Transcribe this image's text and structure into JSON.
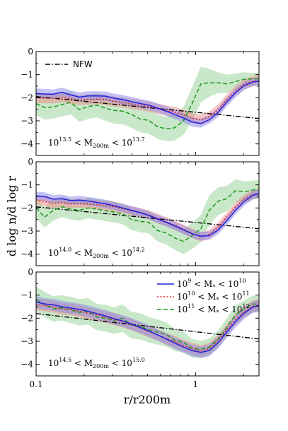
{
  "chart_data": {
    "type": "line",
    "x_scale": "log",
    "xlim": [
      0.1,
      2.5
    ],
    "ylim": [
      -4.5,
      0
    ],
    "xlabel": "r/r200m",
    "ylabel": "d log n/d log r",
    "x_ticks": [
      {
        "value": 0.1,
        "label": "0.1"
      },
      {
        "value": 1,
        "label": "1"
      }
    ],
    "y_ticks": [
      0,
      -1,
      -2,
      -3,
      -4
    ],
    "y_tick_labels": [
      "0",
      "−1",
      "−2",
      "−3",
      "−4"
    ],
    "legend_location": "upper-right in bottom panel",
    "colors": {
      "low": "#2222dd",
      "low_fill": "#8888ee",
      "mid": "#dd2222",
      "mid_fill": "#ee8888",
      "high": "#229922",
      "high_fill": "#88cc88",
      "nfw": "#000000"
    },
    "legend": [
      {
        "series": "low",
        "label_parts": [
          "10",
          "9",
          " < M",
          "*",
          " < 10",
          "10"
        ]
      },
      {
        "series": "mid",
        "label_parts": [
          "10",
          "10",
          " < M",
          "*",
          " < 10",
          "11"
        ]
      },
      {
        "series": "high",
        "label_parts": [
          "10",
          "11",
          " < M",
          "*",
          " < 10",
          "12"
        ]
      }
    ],
    "nfw_label": "NFW",
    "x": [
      0.1,
      0.113,
      0.128,
      0.145,
      0.165,
      0.187,
      0.212,
      0.24,
      0.272,
      0.308,
      0.349,
      0.396,
      0.449,
      0.509,
      0.577,
      0.654,
      0.741,
      0.84,
      0.952,
      1.08,
      1.22,
      1.39,
      1.57,
      1.78,
      2.02,
      2.29,
      2.5
    ],
    "panels": [
      {
        "annotation_parts": [
          "10",
          "13.5",
          " < M",
          "200m",
          " < 10",
          "13.7"
        ],
        "nfw": {
          "x": [
            0.1,
            2.5
          ],
          "y": [
            -1.95,
            -2.9
          ]
        },
        "series": [
          {
            "key": "low",
            "y": [
              -1.82,
              -1.84,
              -1.85,
              -1.76,
              -1.88,
              -1.97,
              -1.92,
              -1.92,
              -1.93,
              -2.02,
              -2.08,
              -2.17,
              -2.25,
              -2.32,
              -2.45,
              -2.58,
              -2.72,
              -2.88,
              -3.05,
              -3.12,
              -2.95,
              -2.62,
              -2.18,
              -1.78,
              -1.48,
              -1.32,
              -1.28
            ],
            "lower": [
              -2.02,
              -2.04,
              -2.06,
              -1.96,
              -2.08,
              -2.17,
              -2.12,
              -2.12,
              -2.13,
              -2.22,
              -2.28,
              -2.37,
              -2.45,
              -2.52,
              -2.64,
              -2.78,
              -2.92,
              -3.08,
              -3.25,
              -3.3,
              -3.12,
              -2.82,
              -2.38,
              -1.98,
              -1.66,
              -1.5,
              -1.45
            ],
            "upper": [
              -1.6,
              -1.62,
              -1.64,
              -1.56,
              -1.68,
              -1.76,
              -1.72,
              -1.72,
              -1.73,
              -1.82,
              -1.88,
              -1.97,
              -2.05,
              -2.12,
              -2.25,
              -2.38,
              -2.52,
              -2.68,
              -2.85,
              -2.92,
              -2.76,
              -2.42,
              -1.98,
              -1.6,
              -1.3,
              -1.15,
              -1.12
            ]
          },
          {
            "key": "mid",
            "y": [
              -2.0,
              -2.02,
              -2.03,
              -1.98,
              -2.05,
              -2.1,
              -2.08,
              -2.06,
              -2.08,
              -2.16,
              -2.2,
              -2.27,
              -2.33,
              -2.38,
              -2.47,
              -2.55,
              -2.62,
              -2.74,
              -2.88,
              -2.96,
              -2.82,
              -2.5,
              -2.08,
              -1.7,
              -1.42,
              -1.28,
              -1.25
            ],
            "lower": [
              -2.22,
              -2.24,
              -2.25,
              -2.2,
              -2.27,
              -2.32,
              -2.3,
              -2.28,
              -2.3,
              -2.38,
              -2.42,
              -2.49,
              -2.55,
              -2.6,
              -2.69,
              -2.77,
              -2.84,
              -2.96,
              -3.1,
              -3.18,
              -3.04,
              -2.72,
              -2.3,
              -1.92,
              -1.64,
              -1.5,
              -1.47
            ],
            "upper": [
              -1.78,
              -1.8,
              -1.81,
              -1.76,
              -1.83,
              -1.88,
              -1.86,
              -1.84,
              -1.86,
              -1.94,
              -1.98,
              -2.05,
              -2.11,
              -2.16,
              -2.25,
              -2.33,
              -2.4,
              -2.52,
              -2.66,
              -2.74,
              -2.6,
              -2.28,
              -1.86,
              -1.48,
              -1.2,
              -1.06,
              -1.03
            ]
          },
          {
            "key": "high",
            "y": [
              -2.25,
              -2.42,
              -2.4,
              -2.3,
              -2.2,
              -2.52,
              -2.38,
              -2.32,
              -2.45,
              -2.55,
              -2.58,
              -2.72,
              -2.92,
              -2.98,
              -3.25,
              -3.35,
              -3.3,
              -3.0,
              -2.25,
              -1.4,
              -1.35,
              -1.35,
              -1.4,
              -1.3,
              -1.2,
              -1.18,
              -1.18
            ],
            "lower": [
              -2.75,
              -2.95,
              -2.9,
              -2.8,
              -2.72,
              -3.05,
              -2.92,
              -2.85,
              -3.0,
              -3.12,
              -3.15,
              -3.3,
              -3.5,
              -3.55,
              -3.78,
              -3.88,
              -3.85,
              -3.6,
              -3.0,
              -2.2,
              -1.95,
              -1.8,
              -1.8,
              -1.65,
              -1.5,
              -1.45,
              -1.42
            ],
            "upper": [
              -1.75,
              -1.9,
              -1.88,
              -1.78,
              -1.7,
              -2.0,
              -1.85,
              -1.8,
              -1.92,
              -2.0,
              -2.02,
              -2.15,
              -2.35,
              -2.42,
              -2.72,
              -2.82,
              -2.75,
              -2.4,
              -1.55,
              -0.65,
              -0.75,
              -0.9,
              -1.0,
              -0.95,
              -0.9,
              -0.92,
              -0.95
            ]
          }
        ]
      },
      {
        "annotation_parts": [
          "10",
          "14.0",
          " < M",
          "200m",
          " < 10",
          "14.2"
        ],
        "nfw": {
          "x": [
            0.1,
            2.5
          ],
          "y": [
            -1.95,
            -2.9
          ]
        },
        "series": [
          {
            "key": "low",
            "y": [
              -1.48,
              -1.5,
              -1.62,
              -1.6,
              -1.68,
              -1.66,
              -1.7,
              -1.76,
              -1.82,
              -1.9,
              -2.0,
              -2.1,
              -2.2,
              -2.32,
              -2.48,
              -2.62,
              -2.78,
              -2.95,
              -3.12,
              -3.22,
              -3.2,
              -2.95,
              -2.55,
              -2.1,
              -1.72,
              -1.45,
              -1.38
            ],
            "lower": [
              -1.66,
              -1.68,
              -1.8,
              -1.78,
              -1.86,
              -1.84,
              -1.88,
              -1.94,
              -2.0,
              -2.08,
              -2.18,
              -2.28,
              -2.38,
              -2.5,
              -2.66,
              -2.8,
              -2.96,
              -3.13,
              -3.3,
              -3.4,
              -3.38,
              -3.13,
              -2.73,
              -2.28,
              -1.9,
              -1.63,
              -1.56
            ],
            "upper": [
              -1.3,
              -1.32,
              -1.44,
              -1.42,
              -1.5,
              -1.48,
              -1.52,
              -1.58,
              -1.64,
              -1.72,
              -1.82,
              -1.92,
              -2.02,
              -2.14,
              -2.3,
              -2.44,
              -2.6,
              -2.77,
              -2.94,
              -3.04,
              -3.02,
              -2.77,
              -2.37,
              -1.92,
              -1.54,
              -1.27,
              -1.2
            ]
          },
          {
            "key": "mid",
            "y": [
              -1.65,
              -1.72,
              -1.8,
              -1.76,
              -1.82,
              -1.8,
              -1.83,
              -1.86,
              -1.9,
              -1.95,
              -2.03,
              -2.12,
              -2.2,
              -2.3,
              -2.45,
              -2.6,
              -2.75,
              -2.92,
              -3.1,
              -3.25,
              -3.15,
              -2.82,
              -2.4,
              -1.95,
              -1.62,
              -1.42,
              -1.36
            ],
            "lower": [
              -1.85,
              -1.92,
              -2.0,
              -1.96,
              -2.02,
              -2.0,
              -2.03,
              -2.06,
              -2.1,
              -2.15,
              -2.23,
              -2.32,
              -2.4,
              -2.5,
              -2.65,
              -2.8,
              -2.95,
              -3.12,
              -3.3,
              -3.45,
              -3.35,
              -3.02,
              -2.6,
              -2.15,
              -1.82,
              -1.62,
              -1.56
            ],
            "upper": [
              -1.45,
              -1.52,
              -1.6,
              -1.56,
              -1.62,
              -1.6,
              -1.63,
              -1.66,
              -1.7,
              -1.75,
              -1.83,
              -1.92,
              -2.0,
              -2.1,
              -2.25,
              -2.4,
              -2.55,
              -2.72,
              -2.9,
              -3.05,
              -2.95,
              -2.62,
              -2.2,
              -1.75,
              -1.42,
              -1.22,
              -1.16
            ]
          },
          {
            "key": "high",
            "y": [
              -2.0,
              -2.4,
              -2.1,
              -1.95,
              -2.05,
              -2.1,
              -2.0,
              -2.05,
              -2.12,
              -2.18,
              -2.25,
              -2.5,
              -2.58,
              -2.62,
              -2.98,
              -3.08,
              -3.3,
              -3.45,
              -3.2,
              -2.9,
              -2.1,
              -1.7,
              -1.6,
              -1.25,
              -1.3,
              -1.22,
              -1.2
            ],
            "lower": [
              -2.45,
              -2.85,
              -2.55,
              -2.4,
              -2.5,
              -2.55,
              -2.45,
              -2.5,
              -2.57,
              -2.63,
              -2.7,
              -2.95,
              -3.05,
              -3.1,
              -3.45,
              -3.58,
              -3.82,
              -4.0,
              -3.78,
              -3.5,
              -2.75,
              -2.3,
              -2.15,
              -1.75,
              -1.75,
              -1.62,
              -1.6
            ],
            "upper": [
              -1.55,
              -1.95,
              -1.65,
              -1.5,
              -1.6,
              -1.65,
              -1.55,
              -1.6,
              -1.67,
              -1.73,
              -1.8,
              -2.05,
              -2.1,
              -2.15,
              -2.5,
              -2.6,
              -2.8,
              -2.92,
              -2.65,
              -2.3,
              -1.45,
              -1.1,
              -1.05,
              -0.75,
              -0.85,
              -0.82,
              -0.8
            ]
          }
        ]
      },
      {
        "annotation_parts": [
          "10",
          "14.5",
          " < M",
          "200m",
          " < 10",
          "15.0"
        ],
        "nfw": {
          "x": [
            0.1,
            2.5
          ],
          "y": [
            -1.8,
            -2.9
          ]
        },
        "series": [
          {
            "key": "low",
            "y": [
              -1.3,
              -1.38,
              -1.42,
              -1.5,
              -1.56,
              -1.62,
              -1.7,
              -1.8,
              -1.9,
              -2.02,
              -2.12,
              -2.25,
              -2.4,
              -2.55,
              -2.72,
              -2.9,
              -3.08,
              -3.25,
              -3.4,
              -3.48,
              -3.4,
              -3.05,
              -2.6,
              -2.15,
              -1.78,
              -1.52,
              -1.45
            ],
            "lower": [
              -1.55,
              -1.63,
              -1.67,
              -1.75,
              -1.81,
              -1.87,
              -1.95,
              -2.05,
              -2.15,
              -2.27,
              -2.37,
              -2.5,
              -2.65,
              -2.8,
              -2.97,
              -3.15,
              -3.33,
              -3.5,
              -3.65,
              -3.73,
              -3.65,
              -3.3,
              -2.85,
              -2.4,
              -2.03,
              -1.77,
              -1.7
            ],
            "upper": [
              -1.05,
              -1.13,
              -1.17,
              -1.25,
              -1.31,
              -1.37,
              -1.45,
              -1.55,
              -1.65,
              -1.77,
              -1.87,
              -2.0,
              -2.15,
              -2.3,
              -2.47,
              -2.65,
              -2.83,
              -3.0,
              -3.15,
              -3.23,
              -3.15,
              -2.8,
              -2.35,
              -1.9,
              -1.53,
              -1.27,
              -1.2
            ]
          },
          {
            "key": "mid",
            "y": [
              -1.4,
              -1.45,
              -1.5,
              -1.6,
              -1.62,
              -1.7,
              -1.78,
              -1.85,
              -1.95,
              -2.05,
              -2.15,
              -2.28,
              -2.42,
              -2.58,
              -2.72,
              -2.88,
              -3.02,
              -3.18,
              -3.32,
              -3.42,
              -3.32,
              -2.95,
              -2.5,
              -2.05,
              -1.72,
              -1.48,
              -1.42
            ],
            "lower": [
              -1.65,
              -1.7,
              -1.75,
              -1.85,
              -1.87,
              -1.95,
              -2.03,
              -2.1,
              -2.2,
              -2.3,
              -2.4,
              -2.53,
              -2.67,
              -2.83,
              -2.97,
              -3.13,
              -3.27,
              -3.43,
              -3.57,
              -3.67,
              -3.57,
              -3.2,
              -2.75,
              -2.3,
              -1.97,
              -1.73,
              -1.67
            ],
            "upper": [
              -1.15,
              -1.2,
              -1.25,
              -1.35,
              -1.37,
              -1.45,
              -1.53,
              -1.6,
              -1.7,
              -1.8,
              -1.9,
              -2.03,
              -2.17,
              -2.33,
              -2.47,
              -2.63,
              -2.77,
              -2.93,
              -3.07,
              -3.17,
              -3.07,
              -2.7,
              -2.25,
              -1.8,
              -1.47,
              -1.23,
              -1.17
            ]
          },
          {
            "key": "high",
            "y": [
              -1.2,
              -1.4,
              -1.6,
              -1.55,
              -1.65,
              -1.75,
              -1.7,
              -1.95,
              -2.0,
              -2.1,
              -2.0,
              -2.3,
              -2.35,
              -2.5,
              -2.6,
              -2.7,
              -2.95,
              -3.05,
              -3.3,
              -3.35,
              -3.25,
              -2.9,
              -2.4,
              -1.85,
              -1.6,
              -1.38,
              -1.4
            ],
            "lower": [
              -1.75,
              -1.95,
              -2.15,
              -2.1,
              -2.22,
              -2.32,
              -2.28,
              -2.52,
              -2.58,
              -2.68,
              -2.6,
              -2.88,
              -2.92,
              -3.05,
              -3.15,
              -3.22,
              -3.42,
              -3.5,
              -3.7,
              -3.72,
              -3.62,
              -3.28,
              -2.8,
              -2.25,
              -1.98,
              -1.75,
              -1.75
            ],
            "upper": [
              -0.65,
              -0.85,
              -1.05,
              -1.0,
              -1.08,
              -1.18,
              -1.12,
              -1.38,
              -1.42,
              -1.52,
              -1.4,
              -1.72,
              -1.78,
              -1.95,
              -2.05,
              -2.18,
              -2.48,
              -2.6,
              -2.9,
              -2.98,
              -2.88,
              -2.52,
              -2.0,
              -1.45,
              -1.22,
              -1.02,
              -1.05
            ]
          }
        ]
      }
    ]
  }
}
